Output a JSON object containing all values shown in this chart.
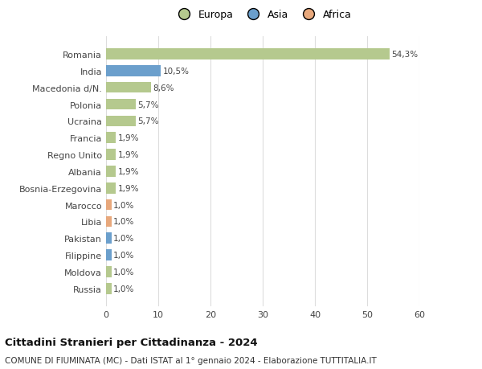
{
  "countries": [
    "Romania",
    "India",
    "Macedonia d/N.",
    "Polonia",
    "Ucraina",
    "Francia",
    "Regno Unito",
    "Albania",
    "Bosnia-Erzegovina",
    "Marocco",
    "Libia",
    "Pakistan",
    "Filippine",
    "Moldova",
    "Russia"
  ],
  "values": [
    54.3,
    10.5,
    8.6,
    5.7,
    5.7,
    1.9,
    1.9,
    1.9,
    1.9,
    1.0,
    1.0,
    1.0,
    1.0,
    1.0,
    1.0
  ],
  "labels": [
    "54,3%",
    "10,5%",
    "8,6%",
    "5,7%",
    "5,7%",
    "1,9%",
    "1,9%",
    "1,9%",
    "1,9%",
    "1,0%",
    "1,0%",
    "1,0%",
    "1,0%",
    "1,0%",
    "1,0%"
  ],
  "continents": [
    "Europa",
    "Asia",
    "Europa",
    "Europa",
    "Europa",
    "Europa",
    "Europa",
    "Europa",
    "Europa",
    "Africa",
    "Africa",
    "Asia",
    "Asia",
    "Europa",
    "Europa"
  ],
  "colors": {
    "Europa": "#b5c98e",
    "Asia": "#6b9fcc",
    "Africa": "#e8a87c"
  },
  "legend_order": [
    "Europa",
    "Asia",
    "Africa"
  ],
  "legend_colors": [
    "#b5c98e",
    "#6b9fcc",
    "#e8a87c"
  ],
  "title": "Cittadini Stranieri per Cittadinanza - 2024",
  "subtitle": "COMUNE DI FIUMINATA (MC) - Dati ISTAT al 1° gennaio 2024 - Elaborazione TUTTITALIA.IT",
  "xlim": [
    0,
    60
  ],
  "xticks": [
    0,
    10,
    20,
    30,
    40,
    50,
    60
  ],
  "bg_color": "#ffffff",
  "grid_color": "#dddddd"
}
